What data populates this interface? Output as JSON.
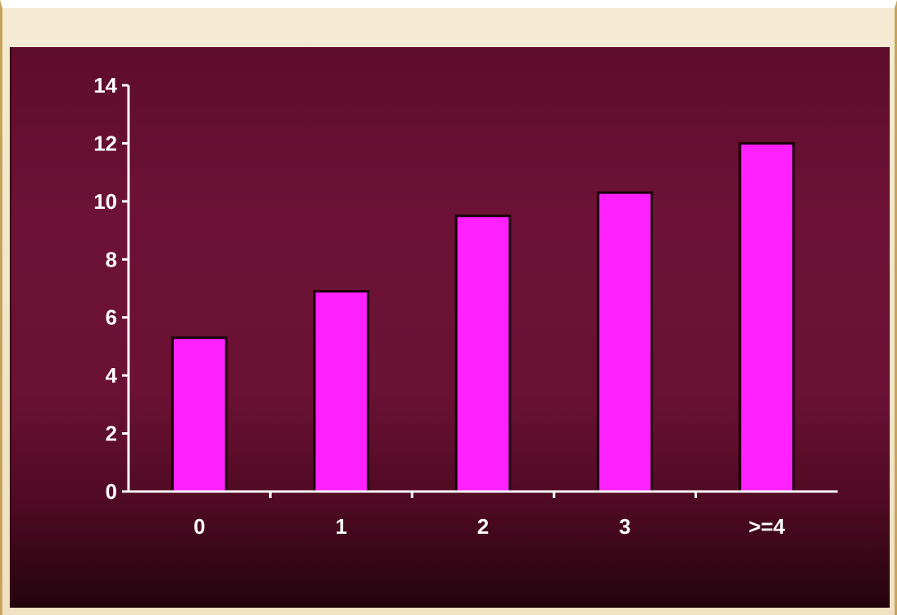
{
  "chart_data": {
    "type": "bar",
    "categories": [
      "0",
      "1",
      "2",
      "3",
      ">=4"
    ],
    "values": [
      5.3,
      6.9,
      9.5,
      10.3,
      12.0
    ],
    "title": "",
    "xlabel": "",
    "ylabel": "",
    "ylim": [
      0,
      14
    ],
    "yticks": [
      0,
      2,
      4,
      6,
      8,
      10,
      12,
      14
    ],
    "grid": false,
    "legend": "none",
    "colors": {
      "bar": "#ff22ff",
      "bar_outline": "#1a0008",
      "axis": "#ffffff",
      "background": "#6a1134",
      "frame": "#f2e6ca"
    }
  }
}
